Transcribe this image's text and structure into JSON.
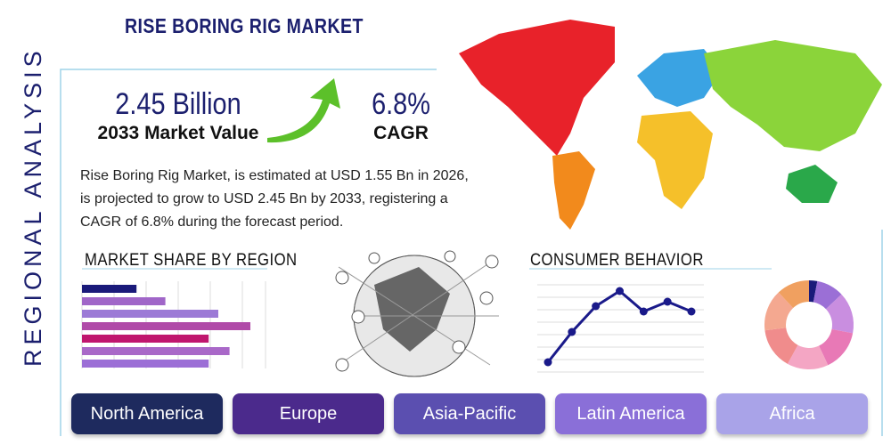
{
  "header": {
    "title": "RISE BORING RIG MARKET"
  },
  "side_label": "REGIONAL ANALYSIS",
  "stats": [
    {
      "value": "2.45 Billion",
      "label": "2033 Market Value"
    },
    {
      "value": "6.8%",
      "label": "CAGR"
    }
  ],
  "description": "Rise Boring Rig Market, is estimated at USD 1.55 Bn in 2026, is projected to grow to USD 2.45 Bn by 2033, registering a CAGR of 6.8% during the forecast period.",
  "market_share": {
    "title": "MARKET SHARE BY REGION",
    "xlim": [
      0,
      6
    ],
    "values": [
      1.7,
      2.6,
      4.25,
      5.25,
      3.95,
      4.6,
      3.95
    ],
    "colors": [
      "#1a1a7a",
      "#a066c8",
      "#9c7ad6",
      "#b04aa8",
      "#c0166e",
      "#a968c8",
      "#9c6fd6"
    ]
  },
  "consumer_behavior": {
    "title": "CONSUMER BEHAVIOR",
    "ylim": [
      0,
      100
    ],
    "values": [
      11,
      45,
      74,
      91,
      68,
      79,
      68
    ],
    "color": "#1a1a8a"
  },
  "donut": {
    "values": [
      3,
      10,
      15,
      15,
      15,
      15,
      15,
      12
    ],
    "colors": [
      "#1a1a7a",
      "#9b6fd6",
      "#c98ee0",
      "#e879b6",
      "#f4a6c4",
      "#f08c8c",
      "#f4a890",
      "#f0a060"
    ]
  },
  "regions": [
    {
      "label": "North America",
      "color": "#1e2a5e"
    },
    {
      "label": "Europe",
      "color": "#4b2a8c"
    },
    {
      "label": "Asia-Pacific",
      "color": "#5b4fb0"
    },
    {
      "label": "Latin America",
      "color": "#8a6fd8"
    },
    {
      "label": "Africa",
      "color": "#a9a3e8"
    }
  ]
}
